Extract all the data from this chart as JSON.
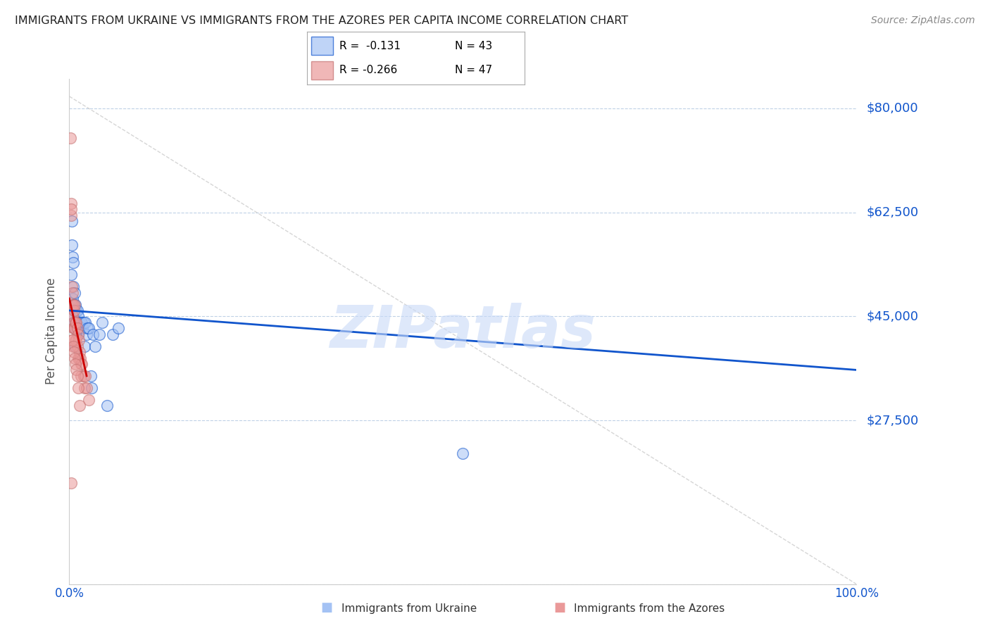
{
  "title": "IMMIGRANTS FROM UKRAINE VS IMMIGRANTS FROM THE AZORES PER CAPITA INCOME CORRELATION CHART",
  "source": "Source: ZipAtlas.com",
  "ylabel": "Per Capita Income",
  "xlim": [
    0.0,
    1.0
  ],
  "ylim": [
    0,
    85000
  ],
  "yticks": [
    0,
    27500,
    45000,
    62500,
    80000
  ],
  "ytick_labels": [
    "",
    "$27,500",
    "$45,000",
    "$62,500",
    "$80,000"
  ],
  "legend_blue_r": "R =  -0.131",
  "legend_blue_n": "N = 43",
  "legend_pink_r": "R = -0.266",
  "legend_pink_n": "N = 47",
  "legend_label_blue": "Immigrants from Ukraine",
  "legend_label_pink": "Immigrants from the Azores",
  "blue_color": "#a4c2f4",
  "pink_color": "#ea9999",
  "line_blue_color": "#1155cc",
  "line_pink_color": "#cc0000",
  "title_color": "#222222",
  "source_color": "#888888",
  "ylabel_color": "#555555",
  "ytick_color": "#1155cc",
  "xtick_color": "#1155cc",
  "watermark_color": "#c9daf8",
  "watermark": "ZIPatlas",
  "ukraine_x": [
    0.002,
    0.003,
    0.003,
    0.004,
    0.004,
    0.005,
    0.005,
    0.005,
    0.006,
    0.006,
    0.007,
    0.007,
    0.007,
    0.008,
    0.008,
    0.009,
    0.009,
    0.01,
    0.01,
    0.011,
    0.011,
    0.012,
    0.013,
    0.014,
    0.015,
    0.016,
    0.017,
    0.018,
    0.019,
    0.02,
    0.022,
    0.023,
    0.025,
    0.027,
    0.028,
    0.03,
    0.033,
    0.038,
    0.042,
    0.048,
    0.055,
    0.062,
    0.5
  ],
  "ukraine_y": [
    52000,
    57000,
    61000,
    55000,
    48000,
    54000,
    50000,
    45000,
    47000,
    44000,
    49000,
    46000,
    43000,
    47000,
    40000,
    46000,
    43000,
    46000,
    44000,
    45000,
    42000,
    44000,
    44000,
    43000,
    44000,
    44000,
    43000,
    44000,
    40000,
    44000,
    42000,
    43000,
    43000,
    35000,
    33000,
    42000,
    40000,
    42000,
    44000,
    30000,
    42000,
    43000,
    22000
  ],
  "azores_x": [
    0.001,
    0.002,
    0.002,
    0.002,
    0.003,
    0.003,
    0.004,
    0.004,
    0.005,
    0.005,
    0.005,
    0.006,
    0.006,
    0.007,
    0.007,
    0.007,
    0.008,
    0.008,
    0.009,
    0.009,
    0.01,
    0.01,
    0.011,
    0.011,
    0.012,
    0.012,
    0.013,
    0.014,
    0.015,
    0.015,
    0.016,
    0.018,
    0.019,
    0.02,
    0.022,
    0.025,
    0.003,
    0.004,
    0.005,
    0.006,
    0.007,
    0.008,
    0.009,
    0.01,
    0.011,
    0.013,
    0.002
  ],
  "azores_y": [
    75000,
    64000,
    62000,
    63000,
    50000,
    47000,
    49000,
    45000,
    47000,
    44000,
    43000,
    46000,
    43000,
    47000,
    43000,
    40000,
    44000,
    41000,
    44000,
    41000,
    43000,
    40000,
    42000,
    38000,
    41000,
    38000,
    39000,
    38000,
    37000,
    35000,
    37000,
    35000,
    33000,
    35000,
    33000,
    31000,
    41000,
    41000,
    40000,
    39000,
    38000,
    37000,
    36000,
    35000,
    33000,
    30000,
    17000
  ],
  "blue_line_x": [
    0.0,
    1.0
  ],
  "blue_line_y": [
    46000,
    36000
  ],
  "pink_line_x": [
    0.0,
    0.022
  ],
  "pink_line_y": [
    48000,
    35000
  ],
  "diag_line_x": [
    0.0,
    1.0
  ],
  "diag_line_y": [
    82000,
    0
  ]
}
